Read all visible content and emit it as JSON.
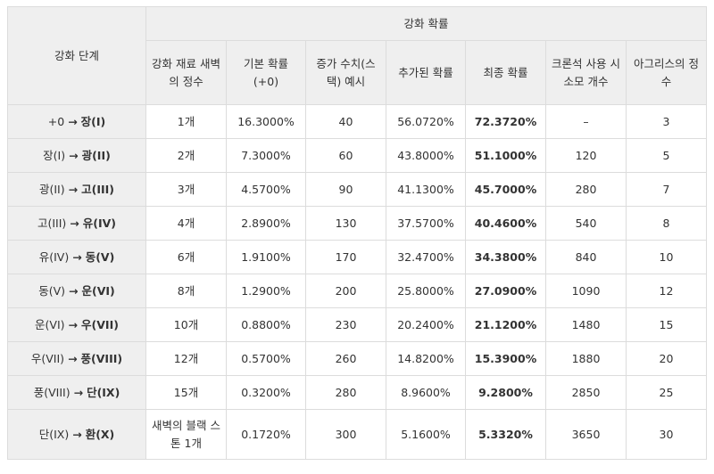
{
  "header": {
    "stage_header": "강화 단계",
    "group_header": "강화 확률",
    "columns": [
      "강화 재료 새벽의 정수",
      "기본 확률 (+0)",
      "증가 수치(스 택) 예시",
      "추가된 확률",
      "최종 확률",
      "크론석 사용 시 소모 개수",
      "아그리스의 정수"
    ]
  },
  "rows": [
    {
      "from": "+0",
      "arrow": "→",
      "to": "장(I)",
      "material": "1개",
      "base": "16.3000%",
      "stack": "40",
      "added": "56.0720%",
      "final": "72.3720%",
      "chron": "–",
      "agris": "3"
    },
    {
      "from": "장(I)",
      "arrow": "→",
      "to": "광(II)",
      "material": "2개",
      "base": "7.3000%",
      "stack": "60",
      "added": "43.8000%",
      "final": "51.1000%",
      "chron": "120",
      "agris": "5"
    },
    {
      "from": "광(II)",
      "arrow": "→",
      "to": "고(III)",
      "material": "3개",
      "base": "4.5700%",
      "stack": "90",
      "added": "41.1300%",
      "final": "45.7000%",
      "chron": "280",
      "agris": "7"
    },
    {
      "from": "고(III)",
      "arrow": "→",
      "to": "유(IV)",
      "material": "4개",
      "base": "2.8900%",
      "stack": "130",
      "added": "37.5700%",
      "final": "40.4600%",
      "chron": "540",
      "agris": "8"
    },
    {
      "from": "유(IV)",
      "arrow": "→",
      "to": "동(V)",
      "material": "6개",
      "base": "1.9100%",
      "stack": "170",
      "added": "32.4700%",
      "final": "34.3800%",
      "chron": "840",
      "agris": "10"
    },
    {
      "from": "동(V)",
      "arrow": "→",
      "to": "운(VI)",
      "material": "8개",
      "base": "1.2900%",
      "stack": "200",
      "added": "25.8000%",
      "final": "27.0900%",
      "chron": "1090",
      "agris": "12"
    },
    {
      "from": "운(VI)",
      "arrow": "→",
      "to": "우(VII)",
      "material": "10개",
      "base": "0.8800%",
      "stack": "230",
      "added": "20.2400%",
      "final": "21.1200%",
      "chron": "1480",
      "agris": "15"
    },
    {
      "from": "우(VII)",
      "arrow": "→",
      "to": "풍(VIII)",
      "material": "12개",
      "base": "0.5700%",
      "stack": "260",
      "added": "14.8200%",
      "final": "15.3900%",
      "chron": "1880",
      "agris": "20"
    },
    {
      "from": "풍(VIII)",
      "arrow": "→",
      "to": "단(IX)",
      "material": "15개",
      "base": "0.3200%",
      "stack": "280",
      "added": "8.9600%",
      "final": "9.2800%",
      "chron": "2850",
      "agris": "25"
    },
    {
      "from": "단(IX)",
      "arrow": "→",
      "to": "환(X)",
      "material": "새벽의 블랙 스톤 1개",
      "base": "0.1720%",
      "stack": "300",
      "added": "5.1600%",
      "final": "5.3320%",
      "chron": "3650",
      "agris": "30"
    }
  ]
}
